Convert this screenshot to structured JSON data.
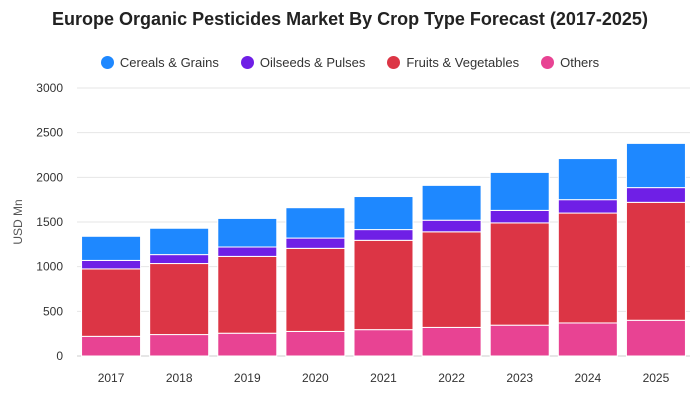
{
  "chart_data": {
    "type": "bar",
    "stacked": true,
    "title": "Europe Organic Pesticides Market By Crop Type Forecast (2017-2025)",
    "xlabel": "",
    "ylabel": "USD Mn",
    "ylim": [
      0,
      3000
    ],
    "yticks": [
      0,
      500,
      1000,
      1500,
      2000,
      2500,
      3000
    ],
    "grid": true,
    "legend_position": "top",
    "categories": [
      "2017",
      "2018",
      "2019",
      "2020",
      "2021",
      "2022",
      "2023",
      "2024",
      "2025"
    ],
    "series": [
      {
        "name": "Others",
        "color": "#e84393",
        "values": [
          220,
          240,
          255,
          275,
          295,
          320,
          345,
          370,
          400
        ]
      },
      {
        "name": "Fruits & Vegetables",
        "color": "#dc3545",
        "values": [
          755,
          795,
          860,
          930,
          1000,
          1070,
          1145,
          1230,
          1320
        ]
      },
      {
        "name": "Oilseeds & Pulses",
        "color": "#6f1fe6",
        "values": [
          95,
          100,
          105,
          115,
          120,
          130,
          140,
          150,
          165
        ]
      },
      {
        "name": "Cereals & Grains",
        "color": "#1e88ff",
        "values": [
          270,
          295,
          320,
          340,
          370,
          390,
          425,
          460,
          495
        ]
      }
    ],
    "legend_order": [
      "Cereals & Grains",
      "Oilseeds & Pulses",
      "Fruits & Vegetables",
      "Others"
    ]
  }
}
